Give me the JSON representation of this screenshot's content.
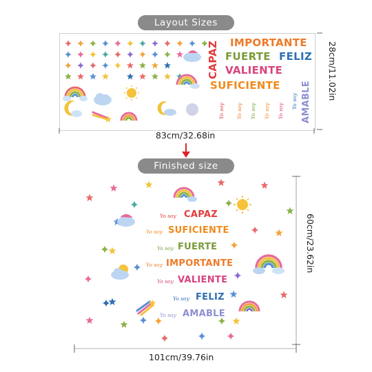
{
  "labels": {
    "layout_sizes": "Layout Sizes",
    "finished_size": "Finished size",
    "layout_width": "83cm/32.68in",
    "layout_height": "28cm/11.02in",
    "finished_width": "101cm/39.76in",
    "finished_height": "60cm/23.62in"
  },
  "words": {
    "capaz": "CAPAZ",
    "suficiente": "SUFICIENTE",
    "fuerte": "FUERTE",
    "importante": "IMPORTANTE",
    "valiente": "VALIENTE",
    "feliz": "FELIZ",
    "amable": "AMABLE",
    "yo_soy": "Yo soy"
  },
  "colors": {
    "pill": "#8a8a8a",
    "arrow": "#d8262c",
    "capaz": "#e23b3b",
    "suficiente": "#f08a1c",
    "fuerte": "#7a9a3a",
    "importante": "#ee7a2a",
    "valiente": "#d8437e",
    "feliz": "#2d6fb4",
    "amable": "#8f8fd4"
  },
  "icons": [
    "star-icon",
    "sparkle-icon",
    "rainbow-icon",
    "cloud-icon",
    "sun-icon",
    "moon-icon",
    "shooting-star-icon"
  ]
}
